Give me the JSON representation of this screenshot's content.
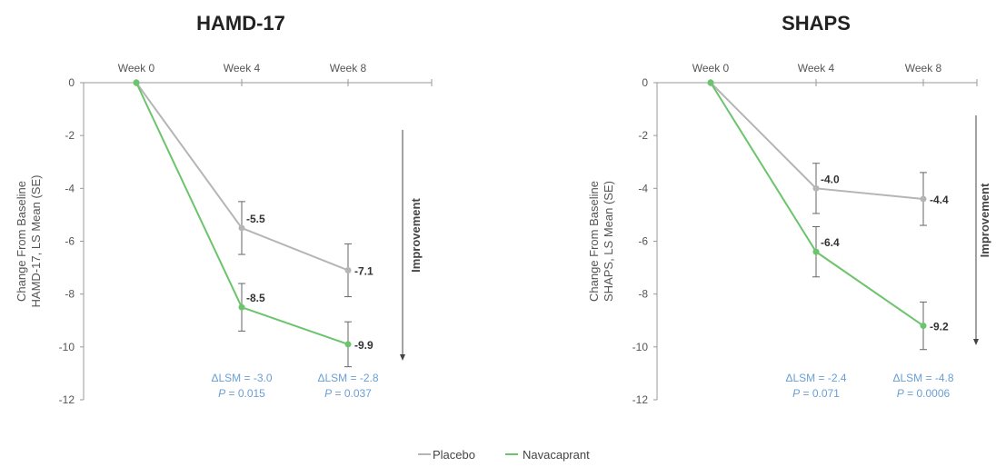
{
  "chart_data": [
    {
      "type": "line",
      "title": "HAMD-17",
      "ylabel_line1": "Change From Baseline",
      "ylabel_line2": "HAMD-17, LS Mean (SE)",
      "categories": [
        "Week 0",
        "Week 4",
        "Week 8"
      ],
      "yticks": [
        "0",
        "-2",
        "-4",
        "-6",
        "-8",
        "-10",
        "-12"
      ],
      "ylim": [
        -12,
        0
      ],
      "grid": false,
      "improvement_label": "Improvement",
      "series": [
        {
          "name": "Placebo",
          "values": [
            0,
            -5.5,
            -7.1
          ],
          "labels": [
            "",
            "-5.5",
            "-7.1"
          ],
          "se": [
            0,
            1.0,
            1.0
          ]
        },
        {
          "name": "Navacaprant",
          "values": [
            0,
            -8.5,
            -9.9
          ],
          "labels": [
            "",
            "-8.5",
            "-9.9"
          ],
          "se": [
            0,
            0.9,
            0.85
          ]
        }
      ],
      "annotations": [
        {
          "category": "Week 4",
          "dlsm": "ΔLSM = -3.0",
          "p_label": "P",
          "p_value": " = 0.015"
        },
        {
          "category": "Week 8",
          "dlsm": "ΔLSM = -2.8",
          "p_label": "P",
          "p_value": " = 0.037"
        }
      ]
    },
    {
      "type": "line",
      "title": "SHAPS",
      "ylabel_line1": "Change From Baseline",
      "ylabel_line2": "SHAPS, LS Mean (SE)",
      "categories": [
        "Week 0",
        "Week 4",
        "Week 8"
      ],
      "yticks": [
        "0",
        "-2",
        "-4",
        "-6",
        "-8",
        "-10",
        "-12"
      ],
      "ylim": [
        -12,
        0
      ],
      "grid": false,
      "improvement_label": "Improvement",
      "series": [
        {
          "name": "Placebo",
          "values": [
            0,
            -4.0,
            -4.4
          ],
          "labels": [
            "",
            "-4.0",
            "-4.4"
          ],
          "se": [
            0,
            0.95,
            1.0
          ]
        },
        {
          "name": "Navacaprant",
          "values": [
            0,
            -6.4,
            -9.2
          ],
          "labels": [
            "",
            "-6.4",
            "-9.2"
          ],
          "se": [
            0,
            0.95,
            0.9
          ]
        }
      ],
      "annotations": [
        {
          "category": "Week 4",
          "dlsm": "ΔLSM = -2.4",
          "p_label": "P",
          "p_value": " = 0.071"
        },
        {
          "category": "Week 8",
          "dlsm": "ΔLSM = -4.8",
          "p_label": "P",
          "p_value": " = 0.0006"
        }
      ]
    }
  ],
  "legend": [
    {
      "name": "Placebo",
      "color": "#b5b5b5"
    },
    {
      "name": "Navacaprant",
      "color": "#6cc46c"
    }
  ],
  "colors": {
    "placebo": "#b5b5b5",
    "navacaprant": "#6cc46c",
    "axis": "#999999",
    "annotation": "#6a9fd4"
  }
}
